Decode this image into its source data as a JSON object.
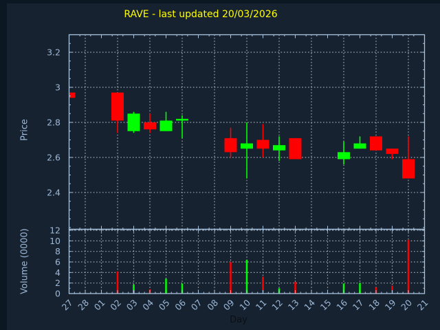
{
  "title": "RAVE - last updated 20/03/2026",
  "colors": {
    "background": "#16222f",
    "window_edge": "#0c1724",
    "frame": "#a9c4de",
    "grid": "#c3cbd4",
    "tick_text": "#9db8d8",
    "title_text": "#ffff00",
    "xlabel_text": "#0a0f16",
    "up": "#00ff00",
    "down": "#ff0000"
  },
  "chart_data": [
    {
      "type": "candlestick",
      "title": "RAVE - last updated 20/03/2026",
      "xlabel": "Day",
      "ylabel": "Price",
      "ylim": [
        2.19,
        3.3
      ],
      "yticks": [
        2.4,
        2.6,
        2.8,
        3.0,
        3.2
      ],
      "yticklabels": [
        "2.4",
        "2.6",
        "2.8",
        "3",
        "3.2"
      ],
      "grid": "on",
      "categories": [
        "27",
        "28",
        "01",
        "02",
        "03",
        "04",
        "05",
        "06",
        "07",
        "08",
        "09",
        "10",
        "11",
        "12",
        "13",
        "14",
        "15",
        "16",
        "17",
        "18",
        "19",
        "20",
        "21"
      ],
      "candles": [
        {
          "day": "27",
          "open": 2.97,
          "high": 2.97,
          "low": 2.94,
          "close": 2.94
        },
        {
          "day": "02",
          "open": 2.97,
          "high": 2.97,
          "low": 2.74,
          "close": 2.81
        },
        {
          "day": "03",
          "open": 2.75,
          "high": 2.86,
          "low": 2.74,
          "close": 2.85
        },
        {
          "day": "04",
          "open": 2.8,
          "high": 2.85,
          "low": 2.74,
          "close": 2.76
        },
        {
          "day": "05",
          "open": 2.75,
          "high": 2.86,
          "low": 2.75,
          "close": 2.81
        },
        {
          "day": "06",
          "open": 2.81,
          "high": 2.84,
          "low": 2.71,
          "close": 2.82
        },
        {
          "day": "09",
          "open": 2.71,
          "high": 2.77,
          "low": 2.6,
          "close": 2.63
        },
        {
          "day": "10",
          "open": 2.65,
          "high": 2.8,
          "low": 2.48,
          "close": 2.68
        },
        {
          "day": "11",
          "open": 2.7,
          "high": 2.79,
          "low": 2.6,
          "close": 2.65
        },
        {
          "day": "12",
          "open": 2.64,
          "high": 2.72,
          "low": 2.58,
          "close": 2.67
        },
        {
          "day": "13",
          "open": 2.71,
          "high": 2.71,
          "low": 2.59,
          "close": 2.59
        },
        {
          "day": "16",
          "open": 2.59,
          "high": 2.69,
          "low": 2.56,
          "close": 2.63
        },
        {
          "day": "17",
          "open": 2.65,
          "high": 2.72,
          "low": 2.65,
          "close": 2.68
        },
        {
          "day": "18",
          "open": 2.72,
          "high": 2.72,
          "low": 2.64,
          "close": 2.64
        },
        {
          "day": "19",
          "open": 2.65,
          "high": 2.65,
          "low": 2.59,
          "close": 2.62
        },
        {
          "day": "20",
          "open": 2.59,
          "high": 2.72,
          "low": 2.48,
          "close": 2.48
        }
      ]
    },
    {
      "type": "bar",
      "xlabel": "Day",
      "ylabel": "Volume (0000)",
      "ylim": [
        0,
        12.2
      ],
      "yticks": [
        0,
        2,
        4,
        6,
        8,
        10,
        12
      ],
      "yticklabels": [
        "0",
        "2",
        "4",
        "6",
        "8",
        "10",
        "12"
      ],
      "grid": "on",
      "categories": [
        "27",
        "28",
        "01",
        "02",
        "03",
        "04",
        "05",
        "06",
        "07",
        "08",
        "09",
        "10",
        "11",
        "12",
        "13",
        "14",
        "15",
        "16",
        "17",
        "18",
        "19",
        "20",
        "21"
      ],
      "bars": [
        {
          "day": "02",
          "value": 4.2
        },
        {
          "day": "03",
          "value": 1.7
        },
        {
          "day": "04",
          "value": 0.8
        },
        {
          "day": "05",
          "value": 2.8
        },
        {
          "day": "06",
          "value": 1.9
        },
        {
          "day": "09",
          "value": 6.0
        },
        {
          "day": "10",
          "value": 6.4
        },
        {
          "day": "11",
          "value": 3.2
        },
        {
          "day": "12",
          "value": 1.0
        },
        {
          "day": "13",
          "value": 2.2
        },
        {
          "day": "16",
          "value": 1.9
        },
        {
          "day": "17",
          "value": 2.0
        },
        {
          "day": "18",
          "value": 1.2
        },
        {
          "day": "19",
          "value": 1.5
        },
        {
          "day": "20",
          "value": 10.2
        }
      ]
    }
  ]
}
